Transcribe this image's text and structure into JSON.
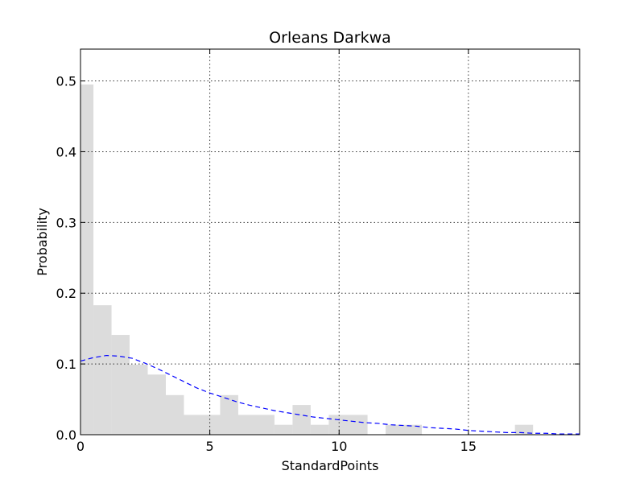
{
  "chart_data": {
    "type": "bar",
    "title": "Orleans Darkwa",
    "xlabel": "StandardPoints",
    "ylabel": "Probability",
    "xlim": [
      0,
      19.3
    ],
    "ylim": [
      0,
      0.545
    ],
    "x_ticks": [
      {
        "value": 0,
        "label": "0"
      },
      {
        "value": 5,
        "label": "5"
      },
      {
        "value": 10,
        "label": "10"
      },
      {
        "value": 15,
        "label": "15"
      }
    ],
    "y_ticks": [
      {
        "value": 0.0,
        "label": "0.0"
      },
      {
        "value": 0.1,
        "label": "0.1"
      },
      {
        "value": 0.2,
        "label": "0.2"
      },
      {
        "value": 0.3,
        "label": "0.3"
      },
      {
        "value": 0.4,
        "label": "0.4"
      },
      {
        "value": 0.5,
        "label": "0.5"
      }
    ],
    "grid": true,
    "histogram": {
      "color": "#dcdcdc",
      "bins": [
        {
          "x0": 0.0,
          "x1": 0.5,
          "value": 0.495
        },
        {
          "x0": 0.5,
          "x1": 1.2,
          "value": 0.183
        },
        {
          "x0": 1.2,
          "x1": 1.9,
          "value": 0.141
        },
        {
          "x0": 1.9,
          "x1": 2.6,
          "value": 0.099
        },
        {
          "x0": 2.6,
          "x1": 3.3,
          "value": 0.085
        },
        {
          "x0": 3.3,
          "x1": 4.0,
          "value": 0.056
        },
        {
          "x0": 4.0,
          "x1": 5.4,
          "value": 0.028
        },
        {
          "x0": 5.4,
          "x1": 6.1,
          "value": 0.056
        },
        {
          "x0": 6.1,
          "x1": 7.5,
          "value": 0.028
        },
        {
          "x0": 7.5,
          "x1": 8.2,
          "value": 0.014
        },
        {
          "x0": 8.2,
          "x1": 8.9,
          "value": 0.042
        },
        {
          "x0": 8.9,
          "x1": 9.6,
          "value": 0.014
        },
        {
          "x0": 9.6,
          "x1": 11.1,
          "value": 0.028
        },
        {
          "x0": 11.8,
          "x1": 13.2,
          "value": 0.014
        },
        {
          "x0": 16.8,
          "x1": 17.5,
          "value": 0.014
        }
      ]
    },
    "fit_line": {
      "color": "#0000ff",
      "style": "dashed",
      "points": [
        [
          0.0,
          0.104
        ],
        [
          0.5,
          0.109
        ],
        [
          1.0,
          0.112
        ],
        [
          1.5,
          0.111
        ],
        [
          2.0,
          0.108
        ],
        [
          2.5,
          0.101
        ],
        [
          3.0,
          0.093
        ],
        [
          3.5,
          0.084
        ],
        [
          4.0,
          0.075
        ],
        [
          4.5,
          0.066
        ],
        [
          5.0,
          0.059
        ],
        [
          5.5,
          0.053
        ],
        [
          6.0,
          0.047
        ],
        [
          6.5,
          0.042
        ],
        [
          7.0,
          0.038
        ],
        [
          7.5,
          0.034
        ],
        [
          8.0,
          0.031
        ],
        [
          8.5,
          0.028
        ],
        [
          9.0,
          0.025
        ],
        [
          9.5,
          0.023
        ],
        [
          10.0,
          0.021
        ],
        [
          10.5,
          0.019
        ],
        [
          11.0,
          0.017
        ],
        [
          11.5,
          0.016
        ],
        [
          12.0,
          0.014
        ],
        [
          12.5,
          0.013
        ],
        [
          13.0,
          0.012
        ],
        [
          13.5,
          0.01
        ],
        [
          14.0,
          0.009
        ],
        [
          14.5,
          0.008
        ],
        [
          15.0,
          0.006
        ],
        [
          15.5,
          0.005
        ],
        [
          16.0,
          0.004
        ],
        [
          16.5,
          0.003
        ],
        [
          17.0,
          0.003
        ],
        [
          17.5,
          0.002
        ],
        [
          18.0,
          0.002
        ],
        [
          18.5,
          0.001
        ],
        [
          19.0,
          0.001
        ],
        [
          19.3,
          0.001
        ]
      ]
    }
  }
}
